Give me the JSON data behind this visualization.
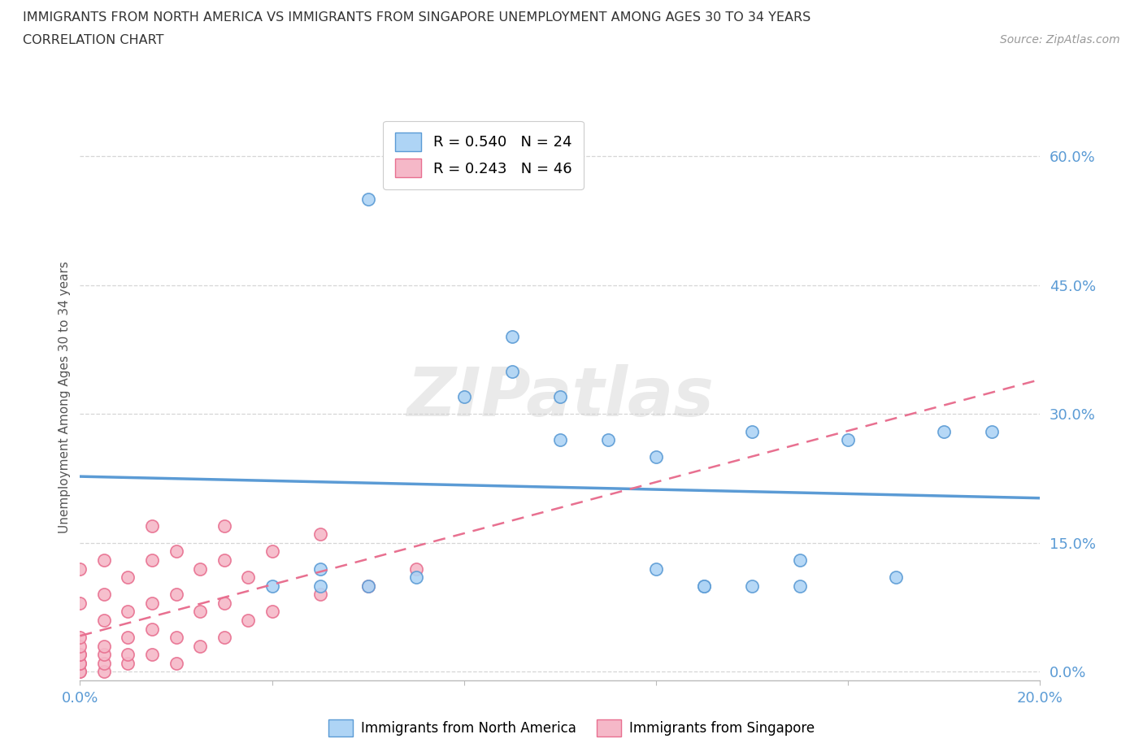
{
  "title_line1": "IMMIGRANTS FROM NORTH AMERICA VS IMMIGRANTS FROM SINGAPORE UNEMPLOYMENT AMONG AGES 30 TO 34 YEARS",
  "title_line2": "CORRELATION CHART",
  "source_text": "Source: ZipAtlas.com",
  "ylabel": "Unemployment Among Ages 30 to 34 years",
  "watermark": "ZIPatlas",
  "north_america_x": [
    0.06,
    0.09,
    0.09,
    0.1,
    0.1,
    0.11,
    0.12,
    0.12,
    0.13,
    0.14,
    0.14,
    0.15,
    0.15,
    0.16,
    0.17,
    0.18,
    0.04,
    0.05,
    0.05,
    0.06,
    0.07,
    0.08,
    0.19,
    0.13
  ],
  "north_america_y": [
    0.55,
    0.39,
    0.35,
    0.32,
    0.27,
    0.27,
    0.25,
    0.12,
    0.1,
    0.28,
    0.1,
    0.13,
    0.1,
    0.27,
    0.11,
    0.28,
    0.1,
    0.12,
    0.1,
    0.1,
    0.11,
    0.32,
    0.28,
    0.1
  ],
  "singapore_x": [
    0.0,
    0.0,
    0.0,
    0.0,
    0.0,
    0.0,
    0.0,
    0.0,
    0.0,
    0.0,
    0.005,
    0.005,
    0.005,
    0.005,
    0.005,
    0.005,
    0.005,
    0.01,
    0.01,
    0.01,
    0.01,
    0.01,
    0.015,
    0.015,
    0.015,
    0.015,
    0.015,
    0.02,
    0.02,
    0.02,
    0.02,
    0.025,
    0.025,
    0.025,
    0.03,
    0.03,
    0.03,
    0.03,
    0.035,
    0.035,
    0.04,
    0.04,
    0.05,
    0.05,
    0.06,
    0.07
  ],
  "singapore_y": [
    0.0,
    0.0,
    0.01,
    0.01,
    0.02,
    0.02,
    0.03,
    0.04,
    0.08,
    0.12,
    0.0,
    0.01,
    0.02,
    0.03,
    0.06,
    0.09,
    0.13,
    0.01,
    0.02,
    0.04,
    0.07,
    0.11,
    0.02,
    0.05,
    0.08,
    0.13,
    0.17,
    0.01,
    0.04,
    0.09,
    0.14,
    0.03,
    0.07,
    0.12,
    0.04,
    0.08,
    0.13,
    0.17,
    0.06,
    0.11,
    0.07,
    0.14,
    0.09,
    0.16,
    0.1,
    0.12
  ],
  "na_R": 0.54,
  "na_N": 24,
  "sg_R": 0.243,
  "sg_N": 46,
  "na_color": "#aed4f5",
  "sg_color": "#f5b8c8",
  "na_line_color": "#5b9bd5",
  "sg_line_color": "#e87090",
  "xlim": [
    0.0,
    0.2
  ],
  "ylim": [
    -0.01,
    0.65
  ],
  "yticks": [
    0.0,
    0.15,
    0.3,
    0.45,
    0.6
  ],
  "ytick_labels": [
    "0.0%",
    "15.0%",
    "30.0%",
    "45.0%",
    "60.0%"
  ],
  "xtick_positions": [
    0.0,
    0.04,
    0.08,
    0.12,
    0.16,
    0.2
  ],
  "xtick_labels": [
    "0.0%",
    "",
    "",
    "",
    "",
    "20.0%"
  ],
  "grid_color": "#cccccc",
  "background_color": "#ffffff",
  "tick_color_blue": "#5b9bd5"
}
